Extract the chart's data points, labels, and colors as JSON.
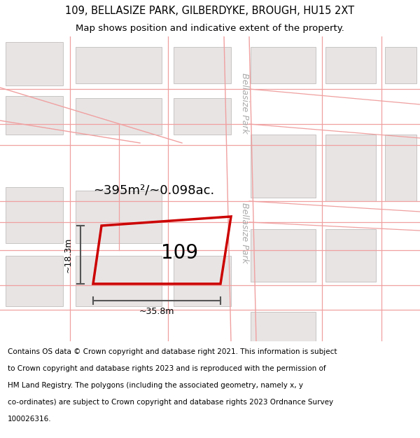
{
  "title_line1": "109, BELLASIZE PARK, GILBERDYKE, BROUGH, HU15 2XT",
  "title_line2": "Map shows position and indicative extent of the property.",
  "area_label": "~395m²/~0.098ac.",
  "plot_number": "109",
  "dim_width": "~35.8m",
  "dim_height": "~18.3m",
  "street_label_top": "Bellasize Park",
  "street_label_bottom": "Bellasize Park",
  "footer_lines": [
    "Contains OS data © Crown copyright and database right 2021. This information is subject",
    "to Crown copyright and database rights 2023 and is reproduced with the permission of",
    "HM Land Registry. The polygons (including the associated geometry, namely x, y",
    "co-ordinates) are subject to Crown copyright and database rights 2023 Ordnance Survey",
    "100026316."
  ],
  "map_bg": "#f7f4f4",
  "plot_color": "#cc0000",
  "road_line_color": "#f0a0a0",
  "building_fill": "#e8e4e4",
  "building_edge": "#c8c4c4",
  "plot_line_color": "#f0a0a0",
  "dim_color": "#555555",
  "street_text_color": "#aaaaaa",
  "title_fontsize": 10.5,
  "subtitle_fontsize": 9.5,
  "footer_fontsize": 7.5
}
